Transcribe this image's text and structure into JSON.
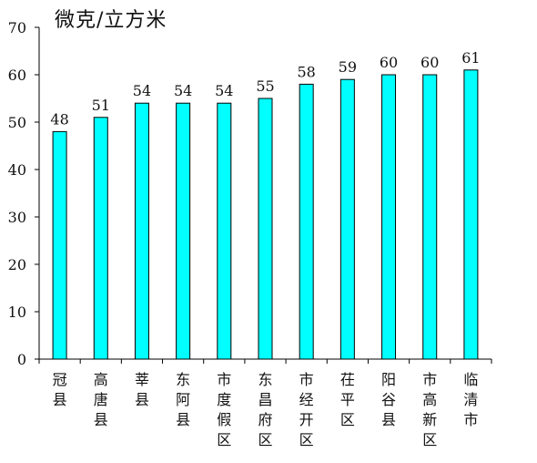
{
  "chart_data": {
    "type": "bar",
    "unit_label": "微克/立方米",
    "categories": [
      "冠县",
      "高唐县",
      "莘县",
      "东阿县",
      "市度假区",
      "东昌府区",
      "市经开区",
      "茌平区",
      "阳谷县",
      "市高新区",
      "临清市"
    ],
    "values": [
      48,
      51,
      54,
      54,
      54,
      55,
      58,
      59,
      60,
      60,
      61
    ],
    "ylim": [
      0,
      70
    ],
    "yticks": [
      0,
      10,
      20,
      30,
      40,
      50,
      60,
      70
    ],
    "grid": false,
    "legend": "none",
    "bar_color": "#00FFFF",
    "bar_edge_color": "#000000"
  }
}
